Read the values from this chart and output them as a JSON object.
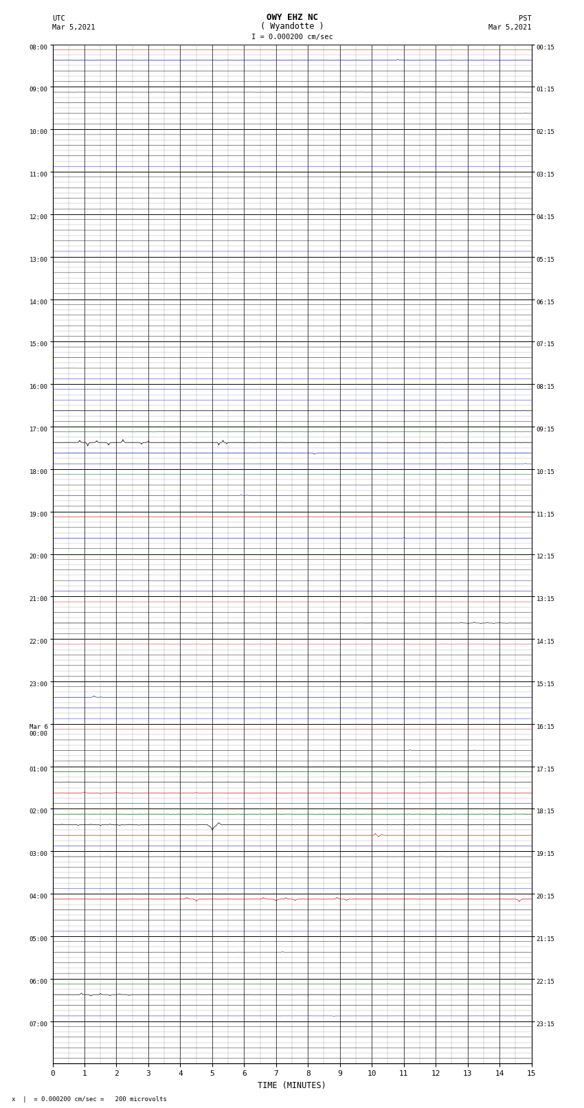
{
  "title_line1": "OWY EHZ NC",
  "title_line2": "( Wyandotte )",
  "scale_label": "I = 0.000200 cm/sec",
  "footer_label": "x  |  = 0.000200 cm/sec =   200 microvolts",
  "utc_label": "UTC",
  "utc_date": "Mar 5,2021",
  "pst_label": "PST",
  "pst_date": "Mar 5,2021",
  "xlabel": "TIME (MINUTES)",
  "xlim": [
    0,
    15
  ],
  "xticks": [
    0,
    1,
    2,
    3,
    4,
    5,
    6,
    7,
    8,
    9,
    10,
    11,
    12,
    13,
    14,
    15
  ],
  "num_rows": 24,
  "sub_traces_per_row": 4,
  "left_labels": [
    "08:00",
    "09:00",
    "10:00",
    "11:00",
    "12:00",
    "13:00",
    "14:00",
    "15:00",
    "16:00",
    "17:00",
    "18:00",
    "19:00",
    "20:00",
    "21:00",
    "22:00",
    "23:00",
    "Mar 6\n00:00",
    "01:00",
    "02:00",
    "03:00",
    "04:00",
    "05:00",
    "06:00",
    "07:00"
  ],
  "right_labels": [
    "00:15",
    "01:15",
    "02:15",
    "03:15",
    "04:15",
    "05:15",
    "06:15",
    "07:15",
    "08:15",
    "09:15",
    "10:15",
    "11:15",
    "12:15",
    "13:15",
    "14:15",
    "15:15",
    "16:15",
    "17:15",
    "18:15",
    "19:15",
    "20:15",
    "21:15",
    "22:15",
    "23:15"
  ],
  "bg_color": "#ffffff",
  "major_grid_color": "#000000",
  "minor_grid_color": "#aaaaaa",
  "fig_width": 8.5,
  "fig_height": 16.13
}
